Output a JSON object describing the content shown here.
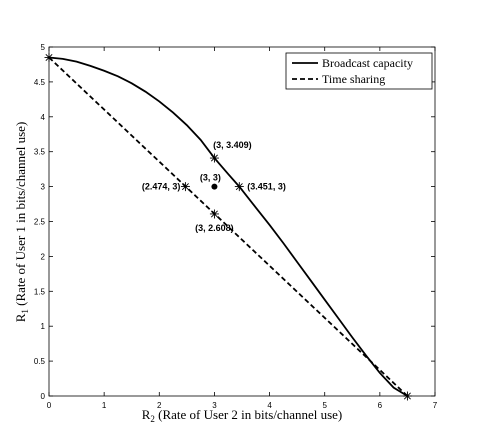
{
  "chart_data": {
    "type": "line",
    "xlabel": {
      "prefix": "R",
      "sub": "2",
      "rest": " (Rate of User 2 in bits/channel use)"
    },
    "ylabel": {
      "prefix": "R",
      "sub": "1",
      "rest": " (Rate of User 1 in bits/channel use)"
    },
    "xlim": [
      0,
      7
    ],
    "ylim": [
      0,
      5
    ],
    "xticks": [
      "0",
      "1",
      "2",
      "3",
      "4",
      "5",
      "6",
      "7"
    ],
    "yticks": [
      "0",
      "0.5",
      "1",
      "1.5",
      "2",
      "2.5",
      "3",
      "3.5",
      "4",
      "4.5",
      "5"
    ],
    "grid": false,
    "legend_position": "top-right",
    "series": [
      {
        "name": "Broadcast capacity",
        "style": "solid",
        "color": "#000000",
        "x": [
          0,
          0.25,
          0.5,
          0.75,
          1,
          1.25,
          1.5,
          1.75,
          2,
          2.25,
          2.5,
          2.75,
          3,
          3.25,
          3.451,
          3.75,
          4,
          4.25,
          4.5,
          4.75,
          5,
          5.25,
          5.5,
          5.75,
          6,
          6.25,
          6.5
        ],
        "y": [
          4.85,
          4.83,
          4.79,
          4.73,
          4.66,
          4.58,
          4.48,
          4.36,
          4.22,
          4.06,
          3.88,
          3.67,
          3.409,
          3.18,
          3.0,
          2.7,
          2.45,
          2.19,
          1.92,
          1.65,
          1.38,
          1.11,
          0.84,
          0.58,
          0.33,
          0.12,
          0.0
        ]
      },
      {
        "name": "Time sharing",
        "style": "dashed",
        "color": "#000000",
        "x": [
          0,
          6.5
        ],
        "y": [
          4.85,
          0
        ]
      }
    ],
    "markers": [
      {
        "x": 0,
        "y": 4.85,
        "symbol": "star",
        "label": ""
      },
      {
        "x": 6.5,
        "y": 0,
        "symbol": "star",
        "label": ""
      },
      {
        "x": 3,
        "y": 3.409,
        "symbol": "star",
        "label": "(3, 3.409)"
      },
      {
        "x": 3,
        "y": 3,
        "symbol": "dot",
        "label": "(3, 3)"
      },
      {
        "x": 2.474,
        "y": 3,
        "symbol": "star",
        "label": "(2.474, 3)"
      },
      {
        "x": 3.451,
        "y": 3,
        "symbol": "star",
        "label": "(3.451, 3)"
      },
      {
        "x": 3,
        "y": 2.608,
        "symbol": "star",
        "label": "(3, 2.608)"
      }
    ]
  }
}
